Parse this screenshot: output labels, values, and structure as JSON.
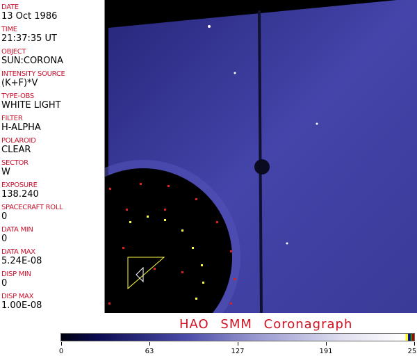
{
  "fields": [
    {
      "label": "DATE",
      "value": "13 Oct 1986"
    },
    {
      "label": "TIME",
      "value": "21:37:35 UT"
    },
    {
      "label": "OBJECT",
      "value": "SUN:CORONA"
    },
    {
      "label": "INTENSITY SOURCE",
      "value": "(K+F)*V"
    },
    {
      "label": "TYPE-OBS",
      "value": "WHITE LIGHT"
    },
    {
      "label": "FILTER",
      "value": "H-ALPHA"
    },
    {
      "label": "POLAROID",
      "value": "CLEAR"
    },
    {
      "label": "SECTOR",
      "value": "W"
    },
    {
      "label": "EXPOSURE",
      "value": "138.240"
    },
    {
      "label": "SPACECRAFT ROLL",
      "value": "0"
    },
    {
      "label": "DATA MIN",
      "value": "0"
    },
    {
      "label": "DATA MAX",
      "value": "5.24E-08"
    },
    {
      "label": "DISP MIN",
      "value": "0"
    },
    {
      "label": "DISP MAX",
      "value": "1.00E-08"
    }
  ],
  "title": "HAO SMM Coronagraph",
  "colorbar": {
    "ticks": [
      "0",
      "63",
      "127",
      "191",
      "255"
    ],
    "colors": {
      "low": "#000010",
      "mid": "#4a4aa8",
      "high": "#ffffff"
    }
  },
  "image": {
    "background": "#000000",
    "corona_color": "#3a3aa0",
    "occulter_marker_color": "#e02020",
    "marker_color": "#ffff40"
  }
}
